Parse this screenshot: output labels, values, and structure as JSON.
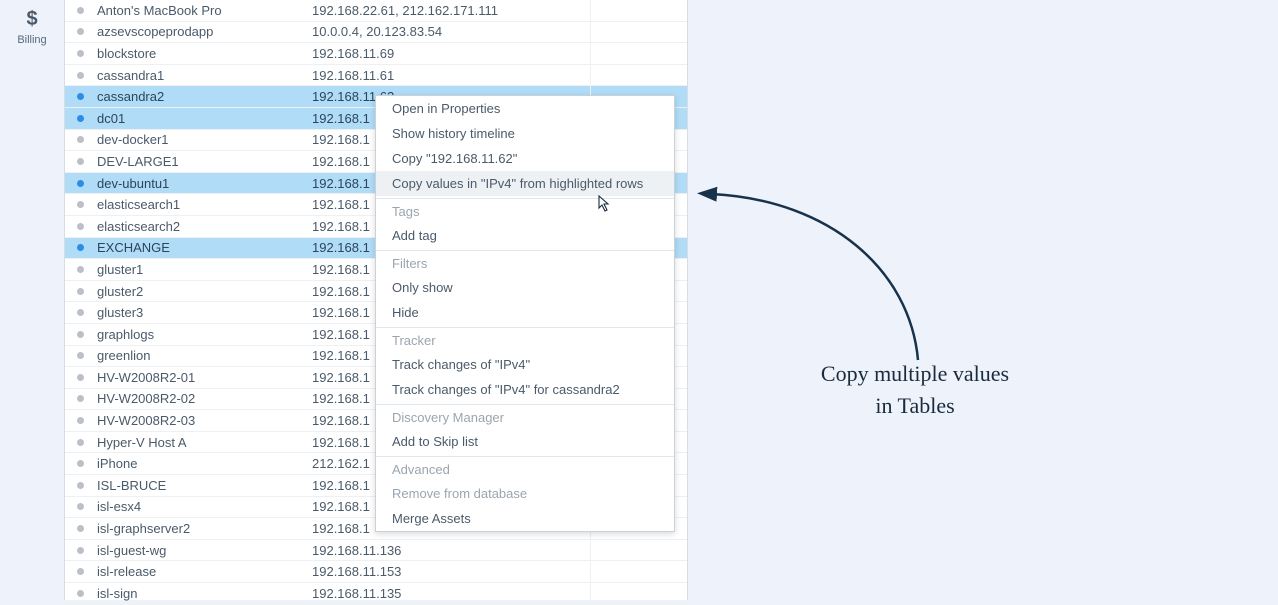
{
  "sidebar": {
    "billing": {
      "glyph": "$",
      "label": "Billing"
    }
  },
  "rows": [
    {
      "name": "Anton's MacBook Pro",
      "ip": "192.168.22.61, 212.162.171.111",
      "dot": "gray",
      "selected": false
    },
    {
      "name": "azsevscopeprodapp",
      "ip": "10.0.0.4, 20.123.83.54",
      "dot": "gray",
      "selected": false
    },
    {
      "name": "blockstore",
      "ip": "192.168.11.69",
      "dot": "gray",
      "selected": false
    },
    {
      "name": "cassandra1",
      "ip": "192.168.11.61",
      "dot": "gray",
      "selected": false
    },
    {
      "name": "cassandra2",
      "ip": "192.168.11.62",
      "dot": "blue",
      "selected": true
    },
    {
      "name": "dc01",
      "ip": "192.168.1",
      "dot": "blue",
      "selected": true
    },
    {
      "name": "dev-docker1",
      "ip": "192.168.1",
      "dot": "gray",
      "selected": false
    },
    {
      "name": "DEV-LARGE1",
      "ip": "192.168.1",
      "dot": "gray",
      "selected": false
    },
    {
      "name": "dev-ubuntu1",
      "ip": "192.168.1",
      "dot": "blue",
      "selected": true
    },
    {
      "name": "elasticsearch1",
      "ip": "192.168.1",
      "dot": "gray",
      "selected": false
    },
    {
      "name": "elasticsearch2",
      "ip": "192.168.1",
      "dot": "gray",
      "selected": false
    },
    {
      "name": "EXCHANGE",
      "ip": "192.168.1",
      "dot": "blue",
      "selected": true
    },
    {
      "name": "gluster1",
      "ip": "192.168.1",
      "dot": "gray",
      "selected": false
    },
    {
      "name": "gluster2",
      "ip": "192.168.1",
      "dot": "gray",
      "selected": false
    },
    {
      "name": "gluster3",
      "ip": "192.168.1",
      "dot": "gray",
      "selected": false
    },
    {
      "name": "graphlogs",
      "ip": "192.168.1",
      "dot": "gray",
      "selected": false
    },
    {
      "name": "greenlion",
      "ip": "192.168.1",
      "dot": "gray",
      "selected": false
    },
    {
      "name": "HV-W2008R2-01",
      "ip": "192.168.1",
      "dot": "gray",
      "selected": false
    },
    {
      "name": "HV-W2008R2-02",
      "ip": "192.168.1",
      "dot": "gray",
      "selected": false
    },
    {
      "name": "HV-W2008R2-03",
      "ip": "192.168.1",
      "dot": "gray",
      "selected": false
    },
    {
      "name": "Hyper-V Host A",
      "ip": "192.168.1",
      "dot": "gray",
      "selected": false
    },
    {
      "name": "iPhone",
      "ip": "212.162.1",
      "dot": "gray",
      "selected": false
    },
    {
      "name": "ISL-BRUCE",
      "ip": "192.168.1",
      "dot": "gray",
      "selected": false
    },
    {
      "name": "isl-esx4",
      "ip": "192.168.1",
      "dot": "gray",
      "selected": false
    },
    {
      "name": "isl-graphserver2",
      "ip": "192.168.1",
      "dot": "gray",
      "selected": false
    },
    {
      "name": "isl-guest-wg",
      "ip": "192.168.11.136",
      "dot": "gray",
      "selected": false
    },
    {
      "name": "isl-release",
      "ip": "192.168.11.153",
      "dot": "gray",
      "selected": false
    },
    {
      "name": "isl-sign",
      "ip": "192.168.11.135",
      "dot": "gray",
      "selected": false
    }
  ],
  "menu": {
    "open_properties": "Open in Properties",
    "show_history": "Show history timeline",
    "copy_value": "Copy \"192.168.11.62\"",
    "copy_column": "Copy values in \"IPv4\" from highlighted rows",
    "section_tags": "Tags",
    "add_tag": "Add tag",
    "section_filters": "Filters",
    "only_show": "Only show",
    "hide": "Hide",
    "section_tracker": "Tracker",
    "track_col": "Track changes of \"IPv4\"",
    "track_row": "Track changes of \"IPv4\" for cassandra2",
    "section_discovery": "Discovery Manager",
    "add_skip": "Add to Skip list",
    "section_advanced": "Advanced",
    "remove_db": "Remove from database",
    "merge": "Merge Assets"
  },
  "annotation": {
    "line1": "Copy multiple values",
    "line2": "in Tables",
    "arrow_color": "#17324a",
    "text_color": "#1a2b3c"
  },
  "colors": {
    "page_bg": "#edf2fb",
    "panel_bg": "#ffffff",
    "row_border": "#eef1f4",
    "text": "#4a5a6a",
    "dot_gray": "#b9c0c8",
    "dot_blue": "#2b8de6",
    "selected_bg": "#b0dcf7",
    "menu_border": "#c9d1d9",
    "menu_section": "#9aa5af"
  }
}
